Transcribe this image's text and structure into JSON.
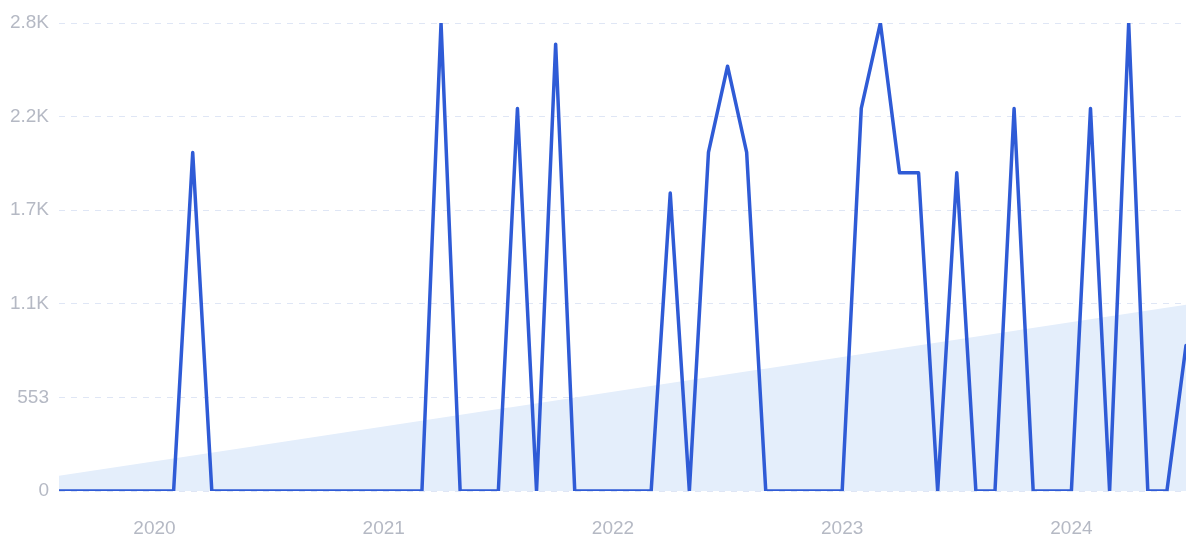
{
  "chart_data": {
    "type": "line",
    "x": [
      "2019-08",
      "2019-09",
      "2019-10",
      "2019-11",
      "2019-12",
      "2020-01",
      "2020-02",
      "2020-03",
      "2020-04",
      "2020-05",
      "2020-06",
      "2020-07",
      "2020-08",
      "2020-09",
      "2020-10",
      "2020-11",
      "2020-12",
      "2021-01",
      "2021-02",
      "2021-03",
      "2021-04",
      "2021-05",
      "2021-06",
      "2021-07",
      "2021-08",
      "2021-09",
      "2021-10",
      "2021-11",
      "2021-12",
      "2022-01",
      "2022-02",
      "2022-03",
      "2022-04",
      "2022-05",
      "2022-06",
      "2022-07",
      "2022-08",
      "2022-09",
      "2022-10",
      "2022-11",
      "2022-12",
      "2023-01",
      "2023-02",
      "2023-03",
      "2023-04",
      "2023-05",
      "2023-06",
      "2023-07",
      "2023-08",
      "2023-09",
      "2023-10",
      "2023-11",
      "2023-12",
      "2024-01",
      "2024-02",
      "2024-03",
      "2024-04",
      "2024-05",
      "2024-06",
      "2024-07"
    ],
    "series": [
      {
        "type": "area",
        "color": "#e4eefb",
        "x": [
          "2019-08",
          "2024-07"
        ],
        "values": [
          90,
          1100
        ]
      },
      {
        "type": "line",
        "color": "#2f5bd6",
        "values": [
          0,
          0,
          0,
          0,
          0,
          0,
          0,
          2000,
          0,
          0,
          0,
          0,
          0,
          0,
          0,
          0,
          0,
          0,
          0,
          0,
          2765,
          0,
          0,
          0,
          2260,
          0,
          2640,
          0,
          0,
          0,
          0,
          0,
          1760,
          0,
          2000,
          2510,
          2000,
          0,
          0,
          0,
          0,
          0,
          2260,
          2765,
          1880,
          1880,
          0,
          1880,
          0,
          0,
          2260,
          0,
          0,
          0,
          2260,
          0,
          2765,
          0,
          0,
          860
        ]
      }
    ],
    "xlim": [
      "2019-08",
      "2024-07"
    ],
    "xticks": [
      {
        "value": "2020-01",
        "label": "2020"
      },
      {
        "value": "2021-01",
        "label": "2021"
      },
      {
        "value": "2022-01",
        "label": "2022"
      },
      {
        "value": "2023-01",
        "label": "2023"
      },
      {
        "value": "2024-01",
        "label": "2024"
      }
    ],
    "ylim": [
      0,
      2765
    ],
    "yticks": [
      0,
      553,
      {
        "value": 1106,
        "label": "1.1K"
      },
      {
        "value": 1659,
        "label": "1.7K"
      },
      {
        "value": 2212,
        "label": "2.2K"
      },
      {
        "value": 2765,
        "label": "2.8K"
      }
    ],
    "grid": "y",
    "marker": "none",
    "line_style": "solid"
  }
}
